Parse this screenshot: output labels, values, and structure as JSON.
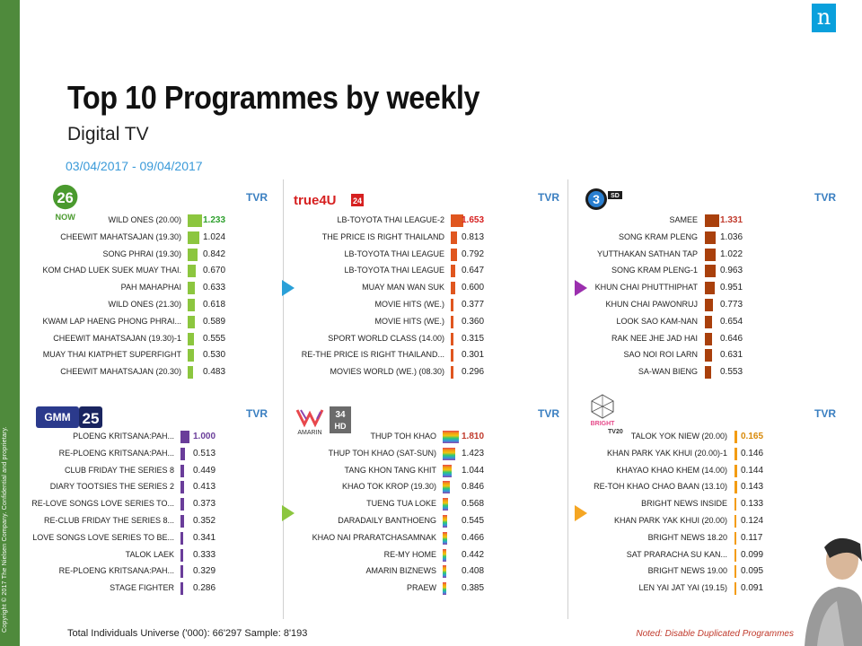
{
  "title": "Top 10 Programmes by weekly",
  "subtitle": "Digital TV",
  "date_range": "03/04/2017 - 09/04/2017",
  "copyright": "Copyright © 2017 The Nielsen Company. Confidential and proprietary.",
  "brand_logo": "n",
  "footer": {
    "left": "Total Individuals Universe ('000): 66'297 Sample: 8'193",
    "right": "Noted: Disable Duplicated Programmes"
  },
  "colors": {
    "accent_blue": "#3a9ad9",
    "nielsen_blue": "#0aa0dc",
    "strip_green": "#4f8a3c"
  },
  "chart_data": [
    {
      "type": "bar",
      "channel": "26 NOW",
      "tvr_label": "TVR",
      "bar_color": "#8cc63f",
      "top_value_color": "#2ea02e",
      "categories": [
        "WILD ONES (20.00)",
        "CHEEWIT MAHATSAJAN (19.30)",
        "SONG PHRAI (19.30)",
        "KOM CHAD LUEK SUEK MUAY THAI.",
        "PAH MAHAPHAI",
        "WILD ONES (21.30)",
        "KWAM LAP HAENG PHONG PHRAI...",
        "CHEEWIT MAHATSAJAN (19.30)-1",
        "MUAY THAI KIATPHET SUPERFIGHT",
        "CHEEWIT MAHATSAJAN (20.30)"
      ],
      "values": [
        1.233,
        1.024,
        0.842,
        0.67,
        0.633,
        0.618,
        0.589,
        0.555,
        0.53,
        0.483
      ],
      "value_labels": [
        "1.233",
        "1.024",
        "0.842",
        "0.670",
        "0.633",
        "0.618",
        "0.589",
        "0.555",
        "0.530",
        "0.483"
      ]
    },
    {
      "type": "bar",
      "channel": "true4U 24",
      "tvr_label": "TVR",
      "bar_color": "#e0561f",
      "top_value_color": "#d62020",
      "categories": [
        "LB-TOYOTA THAI LEAGUE-2",
        "THE PRICE IS RIGHT THAILAND",
        "LB-TOYOTA THAI LEAGUE",
        "LB-TOYOTA THAI LEAGUE",
        "MUAY MAN WAN SUK",
        "MOVIE HITS (WE.)",
        "MOVIE HITS (WE.)",
        "SPORT WORLD CLASS (14.00)",
        "RE-THE PRICE IS RIGHT THAILAND...",
        "MOVIES WORLD (WE.) (08.30)"
      ],
      "values": [
        1.653,
        0.813,
        0.792,
        0.647,
        0.6,
        0.377,
        0.36,
        0.315,
        0.301,
        0.296
      ],
      "value_labels": [
        "1.653",
        "0.813",
        "0.792",
        "0.647",
        "0.600",
        "0.377",
        "0.360",
        "0.315",
        "0.301",
        "0.296"
      ]
    },
    {
      "type": "bar",
      "channel": "3 SD",
      "tvr_label": "TVR",
      "bar_color": "#a9400c",
      "top_value_color": "#c0392b",
      "categories": [
        "SAMEE",
        "SONG KRAM PLENG",
        "YUTTHAKAN SATHAN TAP",
        "SONG KRAM PLENG-1",
        "KHUN CHAI PHUTTHIPHAT",
        "KHUN CHAI PAWONRUJ",
        "LOOK SAO KAM-NAN",
        "RAK NEE JHE JAD HAI",
        "SAO NOI ROI LARN",
        "SA-WAN BIENG"
      ],
      "values": [
        1.331,
        1.036,
        1.022,
        0.963,
        0.951,
        0.773,
        0.654,
        0.646,
        0.631,
        0.553
      ],
      "value_labels": [
        "1.331",
        "1.036",
        "1.022",
        "0.963",
        "0.951",
        "0.773",
        "0.654",
        "0.646",
        "0.631",
        "0.553"
      ]
    },
    {
      "type": "bar",
      "channel": "GMM 25",
      "tvr_label": "TVR",
      "bar_color": "#6a3d9a",
      "top_value_color": "#6a3d9a",
      "categories": [
        "PLOENG KRITSANA:PAH...",
        "RE-PLOENG KRITSANA:PAH...",
        "CLUB FRIDAY THE SERIES 8",
        "DIARY TOOTSIES THE SERIES 2",
        "RE-LOVE SONGS LOVE SERIES TO...",
        "RE-CLUB FRIDAY THE SERIES 8...",
        "LOVE SONGS LOVE SERIES TO BE...",
        "TALOK LAEK",
        "RE-PLOENG KRITSANA:PAH...",
        "STAGE FIGHTER"
      ],
      "values": [
        1.0,
        0.513,
        0.449,
        0.413,
        0.373,
        0.352,
        0.341,
        0.333,
        0.329,
        0.286
      ],
      "value_labels": [
        "1.000",
        "0.513",
        "0.449",
        "0.413",
        "0.373",
        "0.352",
        "0.341",
        "0.333",
        "0.329",
        "0.286"
      ]
    },
    {
      "type": "bar",
      "channel": "AMARIN 34 HD",
      "tvr_label": "TVR",
      "bar_color": "#e8474c",
      "top_value_color": "#c0392b",
      "categories": [
        "THUP TOH KHAO",
        "THUP TOH KHAO (SAT-SUN)",
        "TANG KHON TANG KHIT",
        "KHAO TOK KROP (19.30)",
        "TUENG TUA LOKE",
        "DARADAILY BANTHOENG",
        "KHAO NAI PRARATCHASAMNAK",
        "RE-MY HOME",
        "AMARIN BIZNEWS",
        "PRAEW"
      ],
      "values": [
        1.81,
        1.423,
        1.044,
        0.846,
        0.568,
        0.545,
        0.466,
        0.442,
        0.408,
        0.385
      ],
      "value_labels": [
        "1.810",
        "1.423",
        "1.044",
        "0.846",
        "0.568",
        "0.545",
        "0.466",
        "0.442",
        "0.408",
        "0.385"
      ]
    },
    {
      "type": "bar",
      "channel": "BRIGHT TV20",
      "tvr_label": "TVR",
      "bar_color": "#f39c12",
      "top_value_color": "#d88a0a",
      "categories": [
        "TALOK YOK NIEW (20.00)",
        "KHAN PARK YAK KHUI (20.00)-1",
        "KHAYAO KHAO KHEM (14.00)",
        "RE-TOH KHAO CHAO BAAN (13.10)",
        "BRIGHT NEWS INSIDE",
        "KHAN PARK YAK KHUI (20.00)",
        "BRIGHT NEWS 18.20",
        "SAT PRARACHA SU KAN...",
        "BRIGHT NEWS 19.00",
        "LEN YAI JAT YAI (19.15)"
      ],
      "values": [
        0.165,
        0.146,
        0.144,
        0.143,
        0.133,
        0.124,
        0.117,
        0.099,
        0.095,
        0.091
      ],
      "value_labels": [
        "0.165",
        "0.146",
        "0.144",
        "0.143",
        "0.133",
        "0.124",
        "0.117",
        "0.099",
        "0.095",
        "0.091"
      ]
    }
  ]
}
